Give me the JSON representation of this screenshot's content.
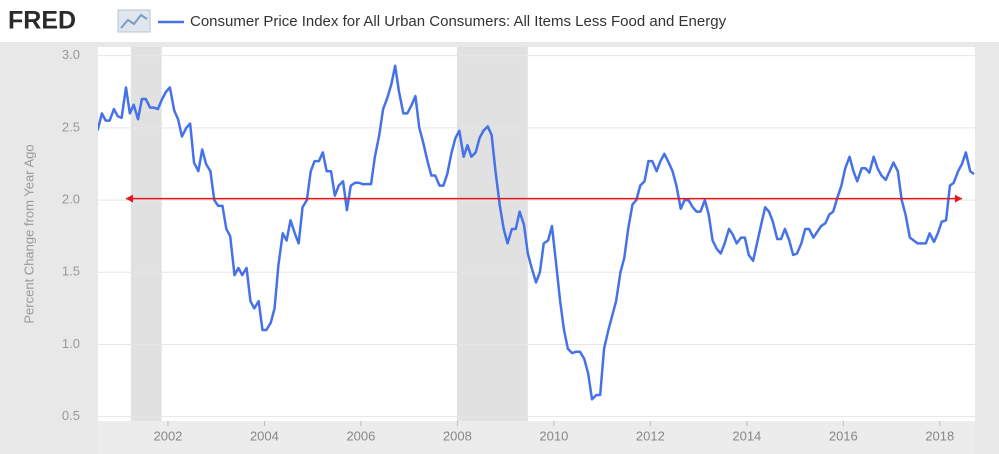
{
  "chart_data": {
    "type": "line",
    "logo": "FRED",
    "ylabel": "Percent Change from Year Ago",
    "xlim": [
      2000.55,
      2018.73
    ],
    "ylim": [
      0.47,
      3.06
    ],
    "xticks": [
      2002,
      2004,
      2006,
      2008,
      2010,
      2012,
      2014,
      2016,
      2018
    ],
    "yticks": [
      0.5,
      {
        "value": 1,
        "label": "1.0"
      },
      1.5,
      {
        "value": 2,
        "label": "2.0"
      },
      2.5,
      {
        "value": 3,
        "label": "3.0"
      }
    ],
    "grid": true,
    "recessions": [
      [
        2001.23,
        2001.87
      ],
      [
        2007.99,
        2009.46
      ]
    ],
    "recession_color": "#e1e1e1",
    "reference_line": {
      "value": 2.01,
      "x": [
        2001.13,
        2018.46
      ],
      "color": "#e8141a"
    },
    "x": [
      2000.54,
      2000.63,
      2000.71,
      2000.79,
      2000.88,
      2000.96,
      2001.04,
      2001.13,
      2001.21,
      2001.29,
      2001.38,
      2001.46,
      2001.54,
      2001.63,
      2001.71,
      2001.79,
      2001.88,
      2001.96,
      2002.04,
      2002.13,
      2002.21,
      2002.29,
      2002.38,
      2002.46,
      2002.54,
      2002.63,
      2002.71,
      2002.79,
      2002.88,
      2002.96,
      2003.04,
      2003.13,
      2003.21,
      2003.29,
      2003.38,
      2003.46,
      2003.54,
      2003.63,
      2003.71,
      2003.79,
      2003.88,
      2003.96,
      2004.04,
      2004.13,
      2004.21,
      2004.29,
      2004.38,
      2004.46,
      2004.54,
      2004.63,
      2004.71,
      2004.79,
      2004.88,
      2004.96,
      2005.04,
      2005.13,
      2005.21,
      2005.29,
      2005.38,
      2005.46,
      2005.54,
      2005.63,
      2005.71,
      2005.79,
      2005.88,
      2005.96,
      2006.04,
      2006.13,
      2006.21,
      2006.29,
      2006.38,
      2006.46,
      2006.54,
      2006.63,
      2006.71,
      2006.79,
      2006.88,
      2006.96,
      2007.04,
      2007.13,
      2007.21,
      2007.29,
      2007.38,
      2007.46,
      2007.54,
      2007.63,
      2007.71,
      2007.79,
      2007.88,
      2007.96,
      2008.04,
      2008.13,
      2008.21,
      2008.29,
      2008.38,
      2008.46,
      2008.54,
      2008.63,
      2008.71,
      2008.79,
      2008.88,
      2008.96,
      2009.04,
      2009.13,
      2009.21,
      2009.29,
      2009.38,
      2009.46,
      2009.54,
      2009.63,
      2009.71,
      2009.79,
      2009.88,
      2009.96,
      2010.04,
      2010.13,
      2010.21,
      2010.29,
      2010.38,
      2010.46,
      2010.54,
      2010.63,
      2010.71,
      2010.79,
      2010.88,
      2010.96,
      2011.04,
      2011.13,
      2011.21,
      2011.29,
      2011.38,
      2011.46,
      2011.54,
      2011.63,
      2011.71,
      2011.79,
      2011.88,
      2011.96,
      2012.04,
      2012.13,
      2012.21,
      2012.29,
      2012.38,
      2012.46,
      2012.54,
      2012.63,
      2012.71,
      2012.79,
      2012.88,
      2012.96,
      2013.04,
      2013.13,
      2013.21,
      2013.29,
      2013.38,
      2013.46,
      2013.54,
      2013.63,
      2013.71,
      2013.79,
      2013.88,
      2013.96,
      2014.04,
      2014.13,
      2014.21,
      2014.29,
      2014.38,
      2014.46,
      2014.54,
      2014.63,
      2014.71,
      2014.79,
      2014.88,
      2014.96,
      2015.04,
      2015.13,
      2015.21,
      2015.29,
      2015.38,
      2015.46,
      2015.54,
      2015.63,
      2015.71,
      2015.79,
      2015.88,
      2015.96,
      2016.04,
      2016.13,
      2016.21,
      2016.29,
      2016.38,
      2016.46,
      2016.54,
      2016.63,
      2016.71,
      2016.79,
      2016.88,
      2016.96,
      2017.04,
      2017.13,
      2017.21,
      2017.29,
      2017.38,
      2017.46,
      2017.54,
      2017.63,
      2017.71,
      2017.79,
      2017.88,
      2017.96,
      2018.04,
      2018.13,
      2018.21,
      2018.29,
      2018.38,
      2018.46,
      2018.54,
      2018.63,
      2018.71
    ],
    "series": [
      {
        "name": "Consumer Price Index for All Urban Consumers: All Items Less Food and Energy",
        "color": "#4572e8",
        "values": [
          2.48,
          2.6,
          2.55,
          2.55,
          2.63,
          2.58,
          2.57,
          2.78,
          2.6,
          2.66,
          2.56,
          2.7,
          2.7,
          2.64,
          2.64,
          2.63,
          2.7,
          2.75,
          2.78,
          2.62,
          2.56,
          2.44,
          2.5,
          2.53,
          2.26,
          2.2,
          2.35,
          2.25,
          2.2,
          2.0,
          1.96,
          1.96,
          1.8,
          1.75,
          1.48,
          1.53,
          1.48,
          1.53,
          1.3,
          1.25,
          1.3,
          1.1,
          1.1,
          1.15,
          1.25,
          1.55,
          1.77,
          1.72,
          1.86,
          1.77,
          1.7,
          1.95,
          2.0,
          2.2,
          2.27,
          2.27,
          2.33,
          2.2,
          2.2,
          2.03,
          2.1,
          2.13,
          1.93,
          2.1,
          2.12,
          2.12,
          2.11,
          2.11,
          2.11,
          2.3,
          2.45,
          2.63,
          2.7,
          2.8,
          2.93,
          2.75,
          2.6,
          2.6,
          2.65,
          2.72,
          2.5,
          2.4,
          2.27,
          2.17,
          2.17,
          2.1,
          2.1,
          2.18,
          2.33,
          2.43,
          2.48,
          2.3,
          2.38,
          2.3,
          2.33,
          2.43,
          2.48,
          2.51,
          2.45,
          2.2,
          1.96,
          1.8,
          1.7,
          1.8,
          1.8,
          1.92,
          1.83,
          1.63,
          1.53,
          1.43,
          1.5,
          1.7,
          1.72,
          1.82,
          1.58,
          1.3,
          1.1,
          0.97,
          0.94,
          0.95,
          0.95,
          0.9,
          0.8,
          0.62,
          0.65,
          0.65,
          0.97,
          1.1,
          1.2,
          1.3,
          1.5,
          1.6,
          1.8,
          1.97,
          2.0,
          2.1,
          2.13,
          2.27,
          2.27,
          2.2,
          2.27,
          2.32,
          2.26,
          2.2,
          2.1,
          1.94,
          2.0,
          2.0,
          1.95,
          1.92,
          1.92,
          2.0,
          1.9,
          1.72,
          1.66,
          1.63,
          1.7,
          1.8,
          1.76,
          1.7,
          1.74,
          1.74,
          1.62,
          1.58,
          1.7,
          1.82,
          1.95,
          1.92,
          1.85,
          1.73,
          1.73,
          1.8,
          1.72,
          1.62,
          1.63,
          1.7,
          1.8,
          1.8,
          1.74,
          1.78,
          1.82,
          1.84,
          1.9,
          1.92,
          2.02,
          2.1,
          2.22,
          2.3,
          2.2,
          2.13,
          2.22,
          2.22,
          2.19,
          2.3,
          2.22,
          2.17,
          2.14,
          2.2,
          2.26,
          2.2,
          2.0,
          1.9,
          1.74,
          1.72,
          1.7,
          1.7,
          1.7,
          1.77,
          1.71,
          1.77,
          1.85,
          1.86,
          2.1,
          2.12,
          2.2,
          2.25,
          2.33,
          2.2,
          2.18
        ]
      }
    ]
  }
}
